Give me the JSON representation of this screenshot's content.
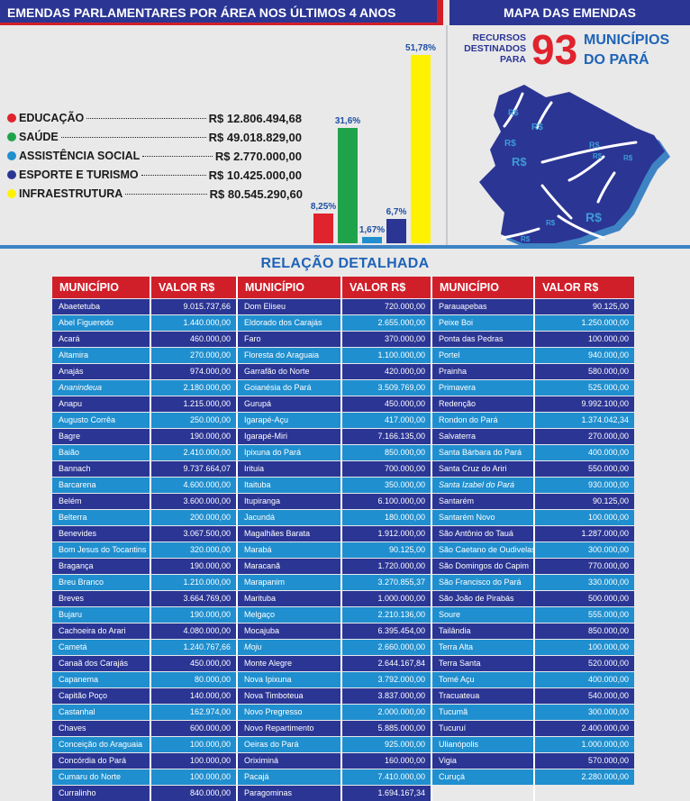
{
  "header": {
    "left_title": "EMENDAS PARLAMENTARES POR ÁREA NOS ÚLTIMOS 4 ANOS",
    "right_title": "MAPA DAS EMENDAS"
  },
  "map": {
    "line1": "RECURSOS",
    "line2": "DESTINADOS",
    "line3": "PARA",
    "count": "93",
    "word1": "MUNICÍPIOS",
    "word2": "DO PARÁ",
    "map_label": "R$",
    "colors": {
      "map_fill": "#2b3594",
      "map_shadow": "#3e83c4"
    }
  },
  "chart_data": {
    "type": "bar",
    "categories": [
      "EDUCAÇÃO",
      "SAÚDE",
      "ASSISTÊNCIA SOCIAL",
      "ESPORTE E TURISMO",
      "INFRAESTRUTURA"
    ],
    "amounts": [
      "R$ 12.806.494,68",
      "R$ 49.018.829,00",
      "R$ 2.770.000,00",
      "R$ 10.425.000,00",
      "R$ 80.545.290,60"
    ],
    "values": [
      8.25,
      31.6,
      1.67,
      6.7,
      51.78
    ],
    "value_labels": [
      "8,25%",
      "31,6%",
      "1,67%",
      "6,7%",
      "51,78%"
    ],
    "colors": [
      "#e0232c",
      "#1fa34a",
      "#1f8fcf",
      "#2b3594",
      "#fff200"
    ],
    "ylim": [
      0,
      55
    ]
  },
  "table": {
    "title": "RELAÇÃO DETALHADA",
    "headers": [
      "MUNICÍPIO",
      "VALOR R$",
      "MUNICÍPIO",
      "VALOR R$",
      "MUNICÍPIO",
      "VALOR R$"
    ],
    "rows": [
      [
        "Abaetetuba",
        "9.015.737,66",
        "Dom Eliseu",
        "720.000,00",
        "Parauapebas",
        "90.125,00"
      ],
      [
        "Abel Figueredo",
        "1.440.000,00",
        "Eldorado dos Carajás",
        "2.655.000,00",
        "Peixe Boi",
        "1.250.000,00"
      ],
      [
        "Acará",
        "460.000,00",
        "Faro",
        "370.000,00",
        "Ponta das Pedras",
        "100.000,00"
      ],
      [
        "Altamira",
        "270.000,00",
        "Floresta do Araguaia",
        "1.100.000,00",
        "Portel",
        "940.000,00"
      ],
      [
        "Anajás",
        "974.000,00",
        "Garrafão do Norte",
        "420.000,00",
        "Prainha",
        "580.000,00"
      ],
      [
        "Ananindeua",
        "2.180.000,00",
        "Goianésia do Pará",
        "3.509.769,00",
        "Primavera",
        "525.000,00"
      ],
      [
        "Anapu",
        "1.215.000,00",
        "Gurupá",
        "450.000,00",
        "Redenção",
        "9.992.100,00"
      ],
      [
        "Augusto Corrêa",
        "250.000,00",
        "Igarapé-Açu",
        "417.000,00",
        "Rondon do Pará",
        "1.374.042,34"
      ],
      [
        "Bagre",
        "190.000,00",
        "Igarapé-Miri",
        "7.166.135,00",
        "Salvaterra",
        "270.000,00"
      ],
      [
        "Baião",
        "2.410.000,00",
        "Ipixuna do Pará",
        "850.000,00",
        "Santa Bárbara do Pará",
        "400.000,00"
      ],
      [
        "Bannach",
        "9.737.664,07",
        "Irituia",
        "700.000,00",
        "Santa Cruz do Ariri",
        "550.000,00"
      ],
      [
        "Barcarena",
        "4.600.000,00",
        "Itaituba",
        "350.000,00",
        "Santa Izabel do Pará",
        "930.000,00"
      ],
      [
        "Belém",
        "3.600.000,00",
        "Itupiranga",
        "6.100.000,00",
        "Santarém",
        "90.125,00"
      ],
      [
        "Belterra",
        "200.000,00",
        "Jacundá",
        "180.000,00",
        "Santarém Novo",
        "100.000,00"
      ],
      [
        "Benevides",
        "3.067.500,00",
        "Magalhães Barata",
        "1.912.000,00",
        "São Antônio do Tauá",
        "1.287.000,00"
      ],
      [
        "Bom Jesus do Tocantins",
        "320.000,00",
        "Marabá",
        "90.125,00",
        "São Caetano de Oudivelas",
        "300.000,00"
      ],
      [
        "Bragança",
        "190.000,00",
        "Maracanã",
        "1.720.000,00",
        "São Domingos do Capim",
        "770.000,00"
      ],
      [
        "Breu Branco",
        "1.210.000,00",
        "Marapanim",
        "3.270.855,37",
        "São Francisco do Pará",
        "330.000,00"
      ],
      [
        "Breves",
        "3.664.769,00",
        "Marituba",
        "1.000.000,00",
        "São João de Pirabás",
        "500.000,00"
      ],
      [
        "Bujaru",
        "190.000,00",
        "Melgaço",
        "2.210.136,00",
        "Soure",
        "555.000,00"
      ],
      [
        "Cachoeira do Arari",
        "4.080.000,00",
        "Mocajuba",
        "6.395.454,00",
        "Tailândia",
        "850.000,00"
      ],
      [
        "Cametá",
        "1.240.767,66",
        "Moju",
        "2.660.000,00",
        "Terra Alta",
        "100.000,00"
      ],
      [
        "Canaã dos Carajás",
        "450.000,00",
        "Monte Alegre",
        "2.644.167,84",
        "Terra Santa",
        "520.000,00"
      ],
      [
        "Capanema",
        "80.000,00",
        "Nova  Ipixuna",
        "3.792.000,00",
        "Tomé Açu",
        "400.000,00"
      ],
      [
        "Capitão Poço",
        "140.000,00",
        "Nova Timboteua",
        "3.837.000,00",
        "Tracuateua",
        "540.000,00"
      ],
      [
        "Castanhal",
        "162.974,00",
        "Novo Pregresso",
        "2.000.000,00",
        "Tucumã",
        "300.000,00"
      ],
      [
        "Chaves",
        "600.000,00",
        "Novo Repartimento",
        "5.885.000,00",
        "Tucuruí",
        "2.400.000,00"
      ],
      [
        "Conceição do Araguaia",
        "100.000,00",
        "Oeiras do Pará",
        "925.000,00",
        "Ulianópolis",
        "1.000.000,00"
      ],
      [
        "Concórdia do Pará",
        "100.000,00",
        "Oriximiná",
        "160.000,00",
        "Vigia",
        "570.000,00"
      ],
      [
        "Cumaru do Norte",
        "100.000,00",
        "Pacajá",
        "7.410.000,00",
        "Curuçá",
        "2.280.000,00"
      ],
      [
        "Curralinho",
        "840.000,00",
        "Paragominas",
        "1.694.167,34",
        "",
        ""
      ]
    ],
    "colors": {
      "header": "#d11f2a",
      "row_dark": "#2b3594",
      "row_light": "#1f8fcf"
    }
  }
}
